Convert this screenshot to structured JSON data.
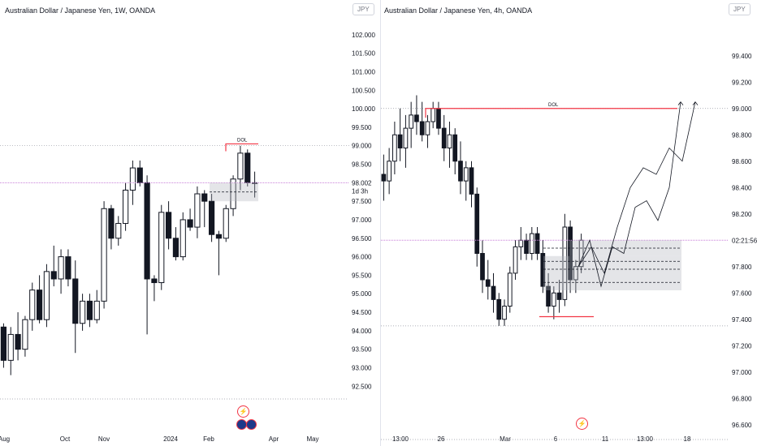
{
  "left": {
    "title": "Australian Dollar / Japanese Yen, 1W, OANDA",
    "currency": "JPY",
    "price_label": "98.002",
    "countdown": "1d 3h",
    "annotation": "DOL",
    "ylim": [
      92.2,
      102.5
    ],
    "axis_ticks": [
      "102.000",
      "101.500",
      "101.000",
      "100.500",
      "100.000",
      "99.500",
      "99.000",
      "98.500",
      "97.500",
      "97.000",
      "96.500",
      "96.000",
      "95.500",
      "95.000",
      "94.500",
      "94.000",
      "93.500",
      "93.000",
      "92.500"
    ],
    "time_labels": [
      "Aug",
      "Oct",
      "Nov",
      "2024",
      "Feb",
      "Apr",
      "May"
    ]
  },
  "right": {
    "title": "Australian Dollar / Japanese Yen, 4h, OANDA",
    "currency": "JPY",
    "price_label": "02:21:56",
    "annotation": "DOL",
    "ylim": [
      96.5,
      99.7
    ],
    "axis_ticks": [
      "99.400",
      "99.200",
      "99.000",
      "98.800",
      "98.600",
      "98.400",
      "98.200",
      "97.800",
      "97.600",
      "97.400",
      "97.200",
      "97.000",
      "96.800",
      "96.600"
    ],
    "time_labels": [
      "13:00",
      "26",
      "Mar",
      "6",
      "11",
      "13:00",
      "18"
    ]
  },
  "chart_data": [
    {
      "type": "candlestick",
      "title": "Australian Dollar / Japanese Yen, 1W, OANDA",
      "ylim": [
        92.2,
        102.5
      ],
      "candles": [
        [
          94.1,
          94.2,
          93.0,
          93.2
        ],
        [
          93.2,
          94.1,
          92.8,
          93.9
        ],
        [
          93.9,
          94.5,
          93.2,
          93.5
        ],
        [
          93.5,
          94.4,
          93.3,
          94.3
        ],
        [
          94.3,
          95.3,
          94.0,
          95.1
        ],
        [
          95.1,
          95.5,
          94.2,
          94.3
        ],
        [
          94.3,
          95.8,
          94.1,
          95.6
        ],
        [
          95.6,
          96.3,
          95.2,
          95.4
        ],
        [
          95.4,
          96.2,
          95.0,
          96.0
        ],
        [
          96.0,
          96.2,
          95.2,
          95.4
        ],
        [
          95.4,
          95.9,
          93.4,
          94.2
        ],
        [
          94.2,
          95.0,
          94.0,
          94.8
        ],
        [
          94.8,
          95.0,
          94.1,
          94.3
        ],
        [
          94.3,
          95.1,
          94.2,
          94.8
        ],
        [
          94.8,
          97.5,
          94.6,
          97.3
        ],
        [
          97.3,
          97.4,
          96.2,
          96.5
        ],
        [
          96.5,
          97.1,
          96.3,
          96.9
        ],
        [
          96.9,
          98.0,
          96.7,
          97.8
        ],
        [
          97.8,
          98.6,
          97.4,
          98.4
        ],
        [
          98.4,
          98.6,
          97.9,
          98.0
        ],
        [
          98.0,
          98.2,
          93.9,
          95.4
        ],
        [
          95.4,
          95.5,
          94.8,
          95.3
        ],
        [
          95.3,
          97.4,
          95.1,
          97.2
        ],
        [
          97.2,
          97.5,
          96.2,
          96.5
        ],
        [
          96.5,
          96.8,
          95.9,
          96.0
        ],
        [
          96.0,
          97.2,
          95.9,
          97.0
        ],
        [
          97.0,
          97.3,
          96.7,
          96.8
        ],
        [
          96.8,
          97.9,
          96.5,
          97.7
        ],
        [
          97.7,
          97.8,
          96.8,
          97.5
        ],
        [
          97.5,
          97.7,
          96.4,
          96.6
        ],
        [
          96.6,
          96.7,
          95.5,
          96.5
        ],
        [
          96.5,
          97.4,
          96.4,
          97.3
        ],
        [
          97.3,
          98.2,
          97.1,
          98.1
        ],
        [
          98.1,
          99.0,
          97.8,
          98.8
        ],
        [
          98.8,
          98.9,
          97.9,
          98.0
        ],
        [
          98.0,
          98.3,
          97.6,
          98.0
        ]
      ]
    },
    {
      "type": "candlestick",
      "title": "Australian Dollar / Japanese Yen, 4h, OANDA",
      "ylim": [
        96.5,
        99.7
      ],
      "candles": [
        [
          98.5,
          98.65,
          98.3,
          98.45
        ],
        [
          98.45,
          98.7,
          98.35,
          98.6
        ],
        [
          98.6,
          98.9,
          98.5,
          98.8
        ],
        [
          98.8,
          99.0,
          98.6,
          98.7
        ],
        [
          98.7,
          98.95,
          98.55,
          98.85
        ],
        [
          98.85,
          99.05,
          98.7,
          98.95
        ],
        [
          98.95,
          99.1,
          98.8,
          98.9
        ],
        [
          98.9,
          99.05,
          98.75,
          98.8
        ],
        [
          98.8,
          98.95,
          98.7,
          98.9
        ],
        [
          98.9,
          99.05,
          98.85,
          99.0
        ],
        [
          99.0,
          99.05,
          98.8,
          98.85
        ],
        [
          98.85,
          98.95,
          98.6,
          98.7
        ],
        [
          98.7,
          98.9,
          98.55,
          98.8
        ],
        [
          98.8,
          98.85,
          98.5,
          98.6
        ],
        [
          98.6,
          98.75,
          98.35,
          98.45
        ],
        [
          98.45,
          98.6,
          98.3,
          98.55
        ],
        [
          98.55,
          98.6,
          98.25,
          98.35
        ],
        [
          98.35,
          98.4,
          97.8,
          97.9
        ],
        [
          97.9,
          98.0,
          97.6,
          97.7
        ],
        [
          97.7,
          97.85,
          97.55,
          97.65
        ],
        [
          97.65,
          97.75,
          97.45,
          97.55
        ],
        [
          97.55,
          97.6,
          97.35,
          97.4
        ],
        [
          97.4,
          97.55,
          97.35,
          97.5
        ],
        [
          97.5,
          97.8,
          97.45,
          97.75
        ],
        [
          97.75,
          98.0,
          97.7,
          97.95
        ],
        [
          97.95,
          98.1,
          97.85,
          98.0
        ],
        [
          98.0,
          98.05,
          97.85,
          97.9
        ],
        [
          97.9,
          98.1,
          97.85,
          98.05
        ],
        [
          98.05,
          98.1,
          97.85,
          97.9
        ],
        [
          97.9,
          98.0,
          97.6,
          97.65
        ],
        [
          97.65,
          97.75,
          97.45,
          97.5
        ],
        [
          97.5,
          97.65,
          97.4,
          97.6
        ],
        [
          97.6,
          97.7,
          97.45,
          97.55
        ],
        [
          97.55,
          98.2,
          97.5,
          98.1
        ],
        [
          98.1,
          98.15,
          97.6,
          97.7
        ],
        [
          97.7,
          97.85,
          97.6,
          97.8
        ],
        [
          97.8,
          98.05,
          97.75,
          98.0
        ]
      ],
      "projection_paths": [
        [
          [
            97.8,
            0
          ],
          [
            97.95,
            1
          ],
          [
            97.75,
            2
          ],
          [
            98.1,
            3
          ],
          [
            98.4,
            4
          ],
          [
            98.55,
            5
          ],
          [
            98.5,
            6
          ],
          [
            98.7,
            7
          ],
          [
            98.6,
            8
          ],
          [
            99.05,
            9
          ]
        ],
        [
          [
            97.8,
            0
          ],
          [
            98.0,
            1
          ],
          [
            97.65,
            2
          ],
          [
            97.95,
            3
          ],
          [
            97.9,
            4
          ],
          [
            98.25,
            5
          ],
          [
            98.3,
            6
          ],
          [
            98.15,
            7
          ],
          [
            98.4,
            8
          ],
          [
            99.05,
            9
          ]
        ]
      ]
    }
  ]
}
